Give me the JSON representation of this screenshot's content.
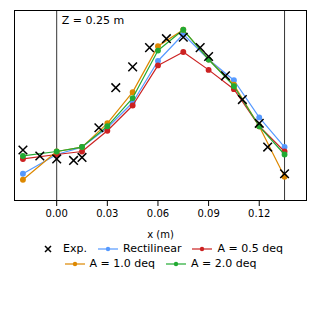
{
  "chart_data": {
    "type": "line",
    "xlabel": "x (m)",
    "xlim": [
      -0.025,
      0.148
    ],
    "xticks": [
      {
        "value": 0.0,
        "label": "0.00"
      },
      {
        "value": 0.03,
        "label": "0.03"
      },
      {
        "value": 0.06,
        "label": "0.06"
      },
      {
        "value": 0.09,
        "label": "0.09"
      },
      {
        "value": 0.12,
        "label": "0.12"
      }
    ],
    "ylim": [
      -0.22,
      0.42
    ],
    "yticks": [],
    "tick_labels": "x",
    "grid": false,
    "legend": "bottom",
    "vlines": [
      0.0,
      0.135
    ],
    "annotations": [
      "Z = 0.25 m"
    ],
    "series": [
      {
        "name": "Exp.",
        "type": "scatter",
        "marker": "x",
        "line_style": "none",
        "color": "#000000",
        "x": [
          -0.02,
          -0.01,
          0.0,
          0.01,
          0.015,
          0.025,
          0.035,
          0.045,
          0.055,
          0.065,
          0.075,
          0.085,
          0.09,
          0.1,
          0.11,
          0.12,
          0.125,
          0.135
        ],
        "values": [
          -0.05,
          -0.07,
          -0.08,
          -0.085,
          -0.075,
          0.025,
          0.16,
          0.23,
          0.295,
          0.325,
          0.33,
          0.295,
          0.265,
          0.2,
          0.12,
          0.04,
          -0.04,
          -0.13
        ]
      },
      {
        "name": "Rectilinear",
        "type": "line",
        "marker": "circle",
        "line_style": "solid",
        "color": "#5599ff",
        "x": [
          -0.02,
          0.0,
          0.015,
          0.03,
          0.045,
          0.06,
          0.075,
          0.09,
          0.105,
          0.12,
          0.135
        ],
        "values": [
          -0.13,
          -0.065,
          -0.04,
          0.025,
          0.11,
          0.25,
          0.34,
          0.255,
          0.185,
          0.06,
          -0.04
        ]
      },
      {
        "name": "A = 0.5 deq",
        "type": "line",
        "marker": "circle",
        "line_style": "solid",
        "color": "#cc2222",
        "x": [
          -0.02,
          0.0,
          0.015,
          0.03,
          0.045,
          0.06,
          0.075,
          0.09,
          0.105,
          0.12,
          0.135
        ],
        "values": [
          -0.08,
          -0.065,
          -0.055,
          0.015,
          0.1,
          0.235,
          0.28,
          0.22,
          0.155,
          0.03,
          -0.055
        ]
      },
      {
        "name": "A = 1.0 deq",
        "type": "line",
        "marker": "circle",
        "line_style": "solid",
        "color": "#dd8800",
        "x": [
          -0.02,
          0.0,
          0.015,
          0.03,
          0.045,
          0.06,
          0.075,
          0.09,
          0.105,
          0.12,
          0.135
        ],
        "values": [
          -0.15,
          -0.055,
          -0.04,
          0.04,
          0.145,
          0.3,
          0.355,
          0.255,
          0.17,
          0.03,
          -0.14
        ]
      },
      {
        "name": "A = 2.0 deq",
        "type": "line",
        "marker": "circle",
        "line_style": "solid",
        "color": "#22aa33",
        "x": [
          -0.02,
          0.0,
          0.015,
          0.03,
          0.045,
          0.06,
          0.075,
          0.09,
          0.105,
          0.12,
          0.135
        ],
        "values": [
          -0.07,
          -0.055,
          -0.04,
          0.03,
          0.125,
          0.285,
          0.355,
          0.255,
          0.165,
          0.03,
          -0.065
        ]
      }
    ]
  }
}
